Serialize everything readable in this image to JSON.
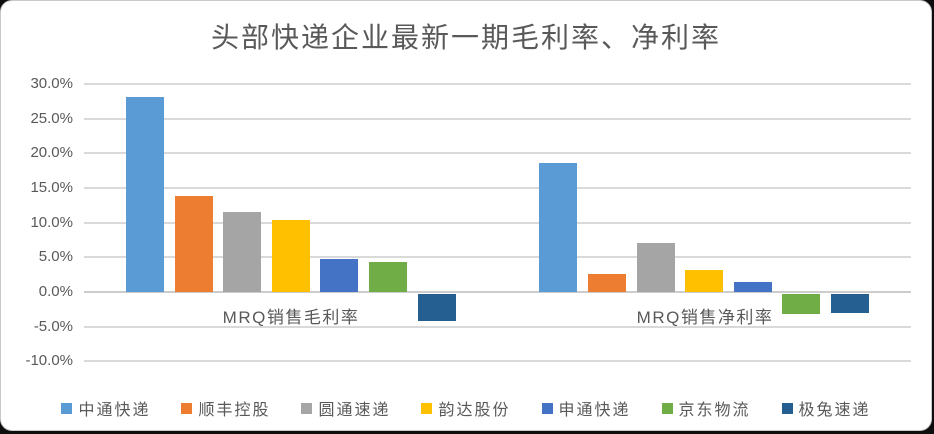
{
  "chart_data": {
    "type": "bar",
    "title": "头部快递企业最新一期毛利率、净利率",
    "categories": [
      "MRQ销售毛利率",
      "MRQ销售净利率"
    ],
    "series": [
      {
        "name": "中通快递",
        "color": "#5B9BD5",
        "values": [
          28.1,
          18.6
        ]
      },
      {
        "name": "顺丰控股",
        "color": "#ED7D31",
        "values": [
          13.8,
          2.6
        ]
      },
      {
        "name": "圆通速递",
        "color": "#A5A5A5",
        "values": [
          11.5,
          7.0
        ]
      },
      {
        "name": "韵达股份",
        "color": "#FFC000",
        "values": [
          10.4,
          3.2
        ]
      },
      {
        "name": "申通快递",
        "color": "#4472C4",
        "values": [
          4.8,
          1.4
        ]
      },
      {
        "name": "京东物流",
        "color": "#70AD47",
        "values": [
          4.3,
          -2.9
        ]
      },
      {
        "name": "极兔速递",
        "color": "#255E91",
        "values": [
          -3.9,
          -2.7
        ]
      }
    ],
    "y_axis": {
      "min": -10,
      "max": 30,
      "step": 5,
      "tick_labels": [
        "30.0%",
        "25.0%",
        "20.0%",
        "15.0%",
        "10.0%",
        "5.0%",
        "0.0%",
        "-5.0%",
        "-10.0%"
      ],
      "unit": "%"
    },
    "grid": true,
    "legend_position": "bottom",
    "colors": {
      "gridline": "#D9D9D9",
      "text": "#595959",
      "plot_background": "#FFFFFF"
    }
  }
}
